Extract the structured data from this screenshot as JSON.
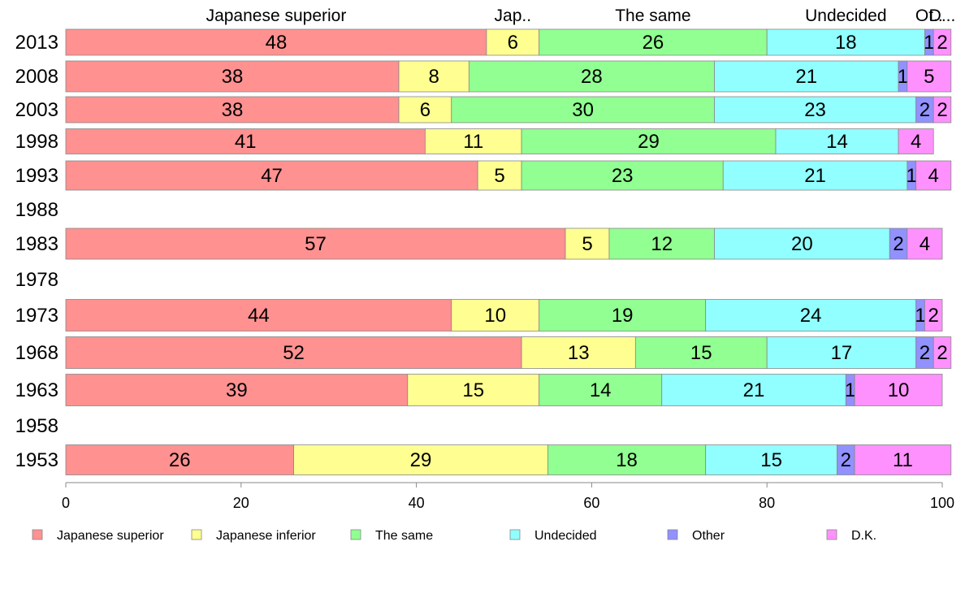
{
  "chart_data": {
    "type": "bar",
    "orientation": "horizontal",
    "stacked": true,
    "xlim": [
      0,
      100
    ],
    "xticks": [
      "0",
      "20",
      "40",
      "60",
      "80",
      "100"
    ],
    "grid": false,
    "legend_position": "bottom",
    "categories": [
      "2013",
      "2008",
      "2003",
      "1998",
      "1993",
      "1988",
      "1983",
      "1978",
      "1973",
      "1968",
      "1963",
      "1958",
      "1953"
    ],
    "top_labels": [
      "Japanese superior",
      "Jap..",
      "The same",
      "Undecided",
      "Ot..",
      "D..."
    ],
    "series": [
      {
        "name": "Japanese superior",
        "color": "#ff9191",
        "values": [
          48,
          38,
          38,
          41,
          47,
          null,
          57,
          null,
          44,
          52,
          39,
          null,
          26
        ]
      },
      {
        "name": "Japanese inferior",
        "color": "#ffff91",
        "values": [
          6,
          8,
          6,
          11,
          5,
          null,
          5,
          null,
          10,
          13,
          15,
          null,
          29
        ]
      },
      {
        "name": "The same",
        "color": "#91ff91",
        "values": [
          26,
          28,
          30,
          29,
          23,
          null,
          12,
          null,
          19,
          15,
          14,
          null,
          18
        ]
      },
      {
        "name": "Undecided",
        "color": "#91ffff",
        "values": [
          18,
          21,
          23,
          14,
          21,
          null,
          20,
          null,
          24,
          17,
          21,
          null,
          15
        ]
      },
      {
        "name": "Other",
        "color": "#9191ff",
        "values": [
          1,
          1,
          2,
          0,
          1,
          null,
          2,
          null,
          1,
          2,
          1,
          null,
          2
        ]
      },
      {
        "name": "D.K.",
        "color": "#ff91ff",
        "values": [
          2,
          5,
          2,
          4,
          4,
          null,
          4,
          null,
          2,
          2,
          10,
          null,
          11
        ]
      }
    ]
  }
}
